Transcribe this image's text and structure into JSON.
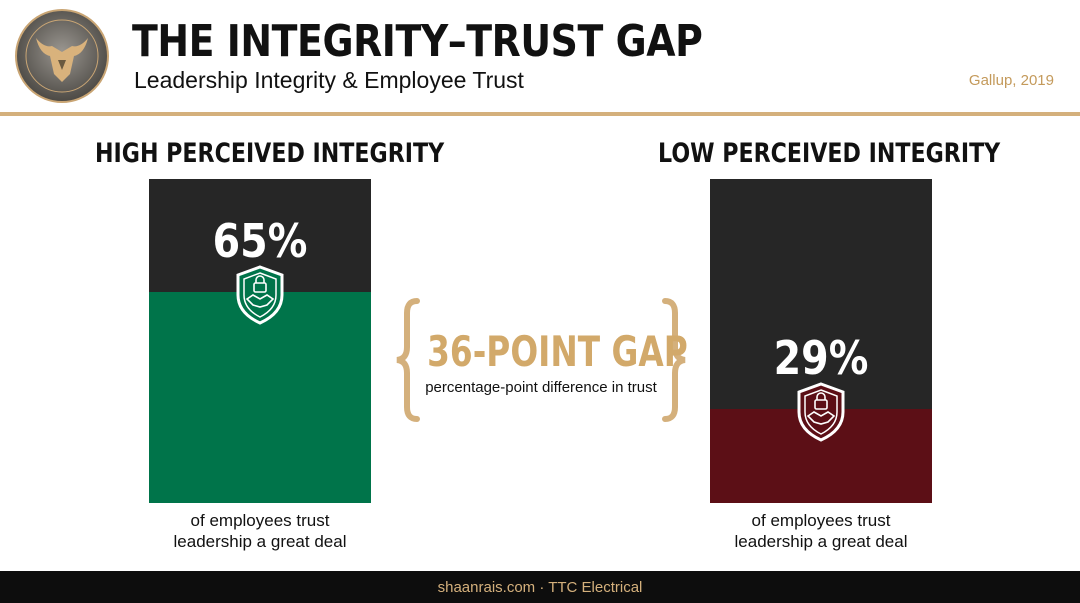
{
  "header": {
    "title": "THE INTEGRITY–TRUST GAP",
    "subtitle": "Leadership Integrity & Employee Trust",
    "source": "Gallup, 2019"
  },
  "colors": {
    "gold": "#d4b07c",
    "bar_bg": "#262626",
    "high_fill": "#00744a",
    "low_fill": "#5c0f16"
  },
  "icons": {
    "shield": "shield-handshake-icon",
    "logo": "bull-logo-icon"
  },
  "chart_data": {
    "type": "bar",
    "categories": [
      "HIGH PERCEIVED INTEGRITY",
      "LOW PERCEIVED INTEGRITY"
    ],
    "values": [
      65,
      29
    ],
    "ylim": [
      0,
      100
    ],
    "value_labels": [
      "65%",
      "29%"
    ],
    "captions": [
      [
        "of employees trust",
        "leadership a great deal"
      ],
      [
        "of employees trust",
        "leadership a great deal"
      ]
    ],
    "annotation": {
      "title": "36-POINT GAP",
      "subtitle": "percentage-point difference in trust"
    }
  },
  "footer": {
    "text": "shaanrais.com · TTC Electrical"
  }
}
